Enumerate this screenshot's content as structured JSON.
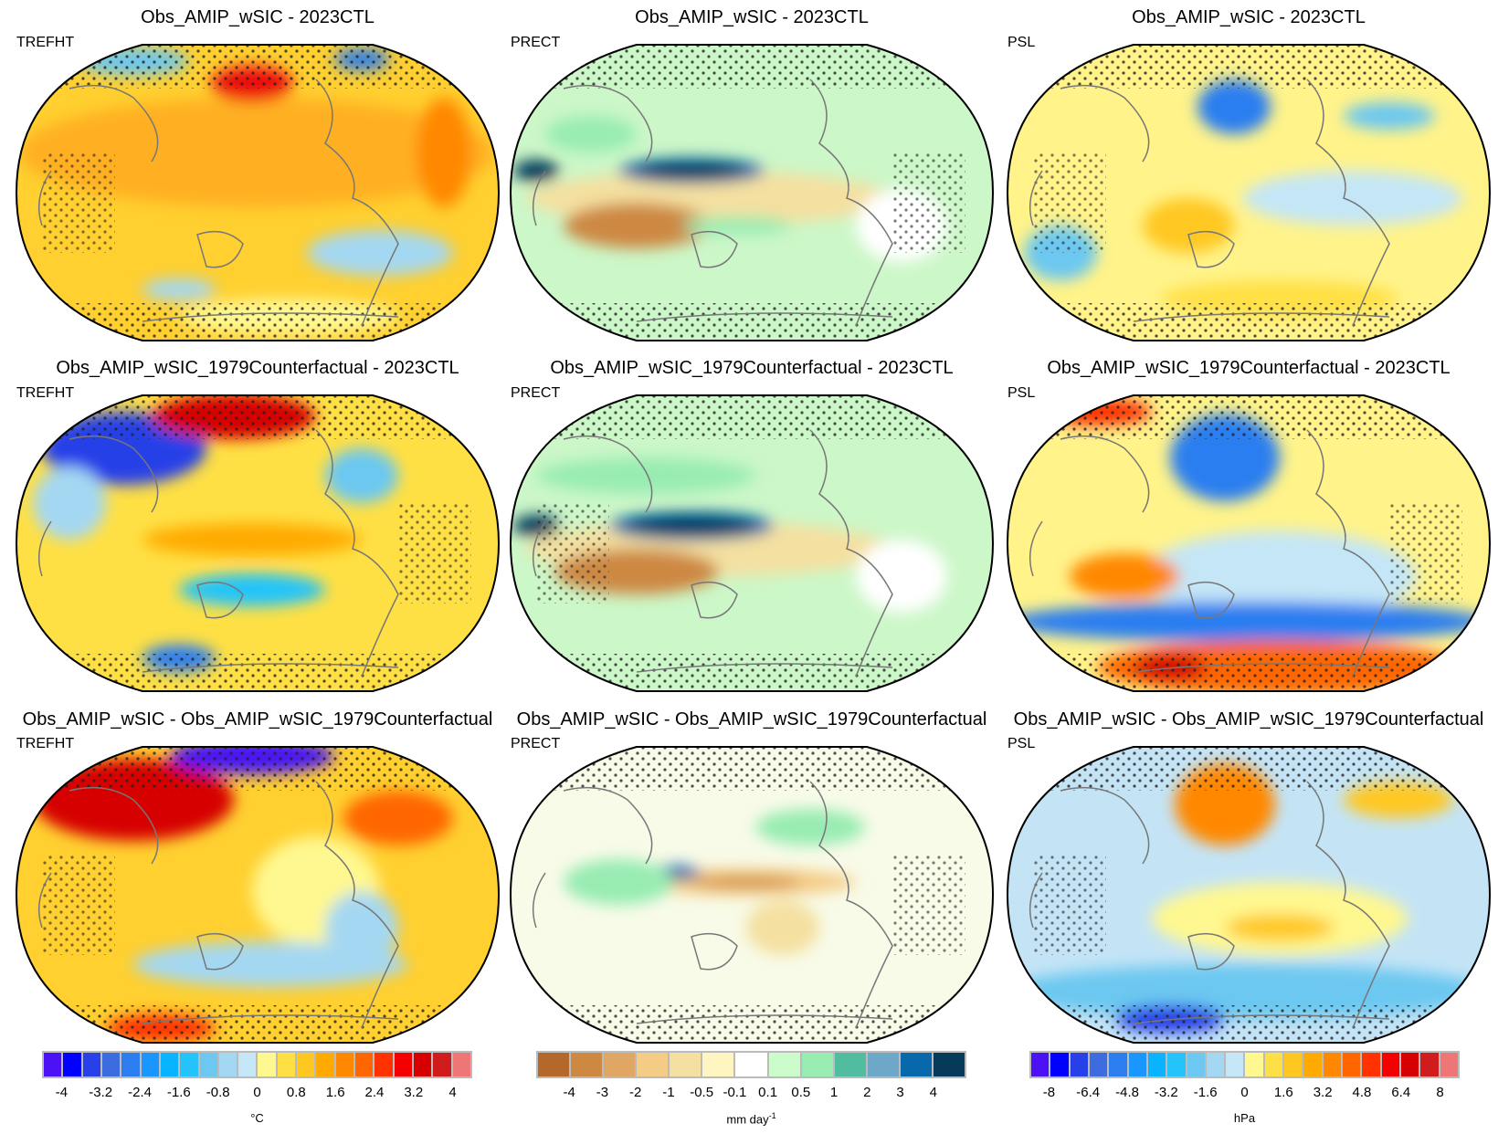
{
  "panels": [
    {
      "title": "Obs_AMIP_wSIC - 2023CTL",
      "variable": "TREFHT"
    },
    {
      "title": "Obs_AMIP_wSIC - 2023CTL",
      "variable": "PRECT"
    },
    {
      "title": "Obs_AMIP_wSIC - 2023CTL",
      "variable": "PSL"
    },
    {
      "title": "Obs_AMIP_wSIC_1979Counterfactual - 2023CTL",
      "variable": "TREFHT"
    },
    {
      "title": "Obs_AMIP_wSIC_1979Counterfactual - 2023CTL",
      "variable": "PRECT"
    },
    {
      "title": "Obs_AMIP_wSIC_1979Counterfactual - 2023CTL",
      "variable": "PSL"
    },
    {
      "title": "Obs_AMIP_wSIC - Obs_AMIP_wSIC_1979Counterfactual",
      "variable": "TREFHT"
    },
    {
      "title": "Obs_AMIP_wSIC - Obs_AMIP_wSIC_1979Counterfactual",
      "variable": "PRECT"
    },
    {
      "title": "Obs_AMIP_wSIC - Obs_AMIP_wSIC_1979Counterfactual",
      "variable": "PSL"
    }
  ],
  "colorbars": [
    {
      "unit": "°C",
      "ticks": [
        "-4",
        "-3.2",
        "-2.4",
        "-1.6",
        "-0.8",
        "0",
        "0.8",
        "1.6",
        "2.4",
        "3.2",
        "4"
      ],
      "colors": [
        "#4a12f5",
        "#0000ff",
        "#2840e8",
        "#3c6ce0",
        "#2c7ef0",
        "#1a96ff",
        "#08b4ff",
        "#24c4fa",
        "#6cc8f0",
        "#a4d8f2",
        "#c4e6f6",
        "#fff890",
        "#ffe044",
        "#ffc820",
        "#ffaa00",
        "#ff8800",
        "#ff6600",
        "#ff3200",
        "#f50000",
        "#d60000",
        "#d01c1c",
        "#ee7676"
      ]
    },
    {
      "unit": "mm day",
      "unit_sup": "-1",
      "ticks": [
        "-4",
        "-3",
        "-2",
        "-1",
        "-0.5",
        "-0.1",
        "0.1",
        "0.5",
        "1",
        "2",
        "3",
        "4"
      ],
      "colors": [
        "#b4692a",
        "#cd8842",
        "#e0a664",
        "#f4cc86",
        "#f4e0a0",
        "#fff5c0",
        "#ffffff",
        "#ccfccc",
        "#98ecb2",
        "#50bca0",
        "#6ea8c8",
        "#0868ac",
        "#063a5a"
      ]
    },
    {
      "unit": "hPa",
      "ticks": [
        "-8",
        "-6.4",
        "-4.8",
        "-3.2",
        "-1.6",
        "0",
        "1.6",
        "3.2",
        "4.8",
        "6.4",
        "8"
      ],
      "colors": [
        "#4a12f5",
        "#0000ff",
        "#2840e8",
        "#3c6ce0",
        "#2c7ef0",
        "#1a96ff",
        "#08b4ff",
        "#24c4fa",
        "#6cc8f0",
        "#a4d8f2",
        "#c4e6f6",
        "#fff890",
        "#ffe044",
        "#ffc820",
        "#ffaa00",
        "#ff8800",
        "#ff6600",
        "#ff3200",
        "#f50000",
        "#d60000",
        "#d01c1c",
        "#ee7676"
      ]
    }
  ]
}
